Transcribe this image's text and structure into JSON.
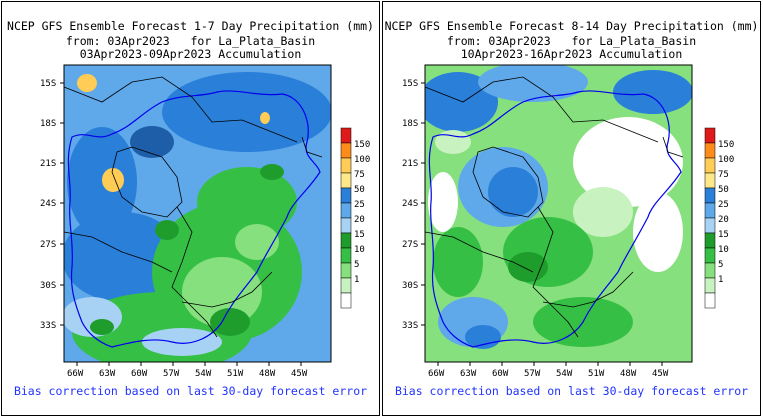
{
  "panels": [
    {
      "id": "left",
      "title_line1": "NCEP GFS Ensemble Forecast 1-7 Day Precipitation (mm)",
      "title_line2": "from: 03Apr2023   for La_Plata_Basin",
      "title_line3": "03Apr2023-09Apr2023 Accumulation",
      "footnote": "Bias correction based on last 30-day forecast error"
    },
    {
      "id": "right",
      "title_line1": "NCEP GFS Ensemble Forecast 8-14 Day Precipitation (mm)",
      "title_line2": "from: 03Apr2023   for La_Plata_Basin",
      "title_line3": "10Apr2023-16Apr2023 Accumulation",
      "footnote": "Bias correction based on last 30-day forecast error"
    }
  ],
  "latitude_labels": [
    "15S",
    "18S",
    "21S",
    "24S",
    "27S",
    "30S",
    "33S"
  ],
  "longitude_labels": [
    "66W",
    "63W",
    "60W",
    "57W",
    "54W",
    "51W",
    "48W",
    "45W"
  ],
  "legend": {
    "levels": [
      "150",
      "100",
      "75",
      "50",
      "25",
      "20",
      "15",
      "10",
      "5",
      "1"
    ],
    "colors": [
      "#e01a1a",
      "#ff8c1a",
      "#ffcc55",
      "#ffe88a",
      "#2a7fd8",
      "#5fa8ea",
      "#a8d2f4",
      "#1f9d2c",
      "#35c045",
      "#86e07e",
      "#c8f2c0",
      "#ffffff"
    ]
  }
}
